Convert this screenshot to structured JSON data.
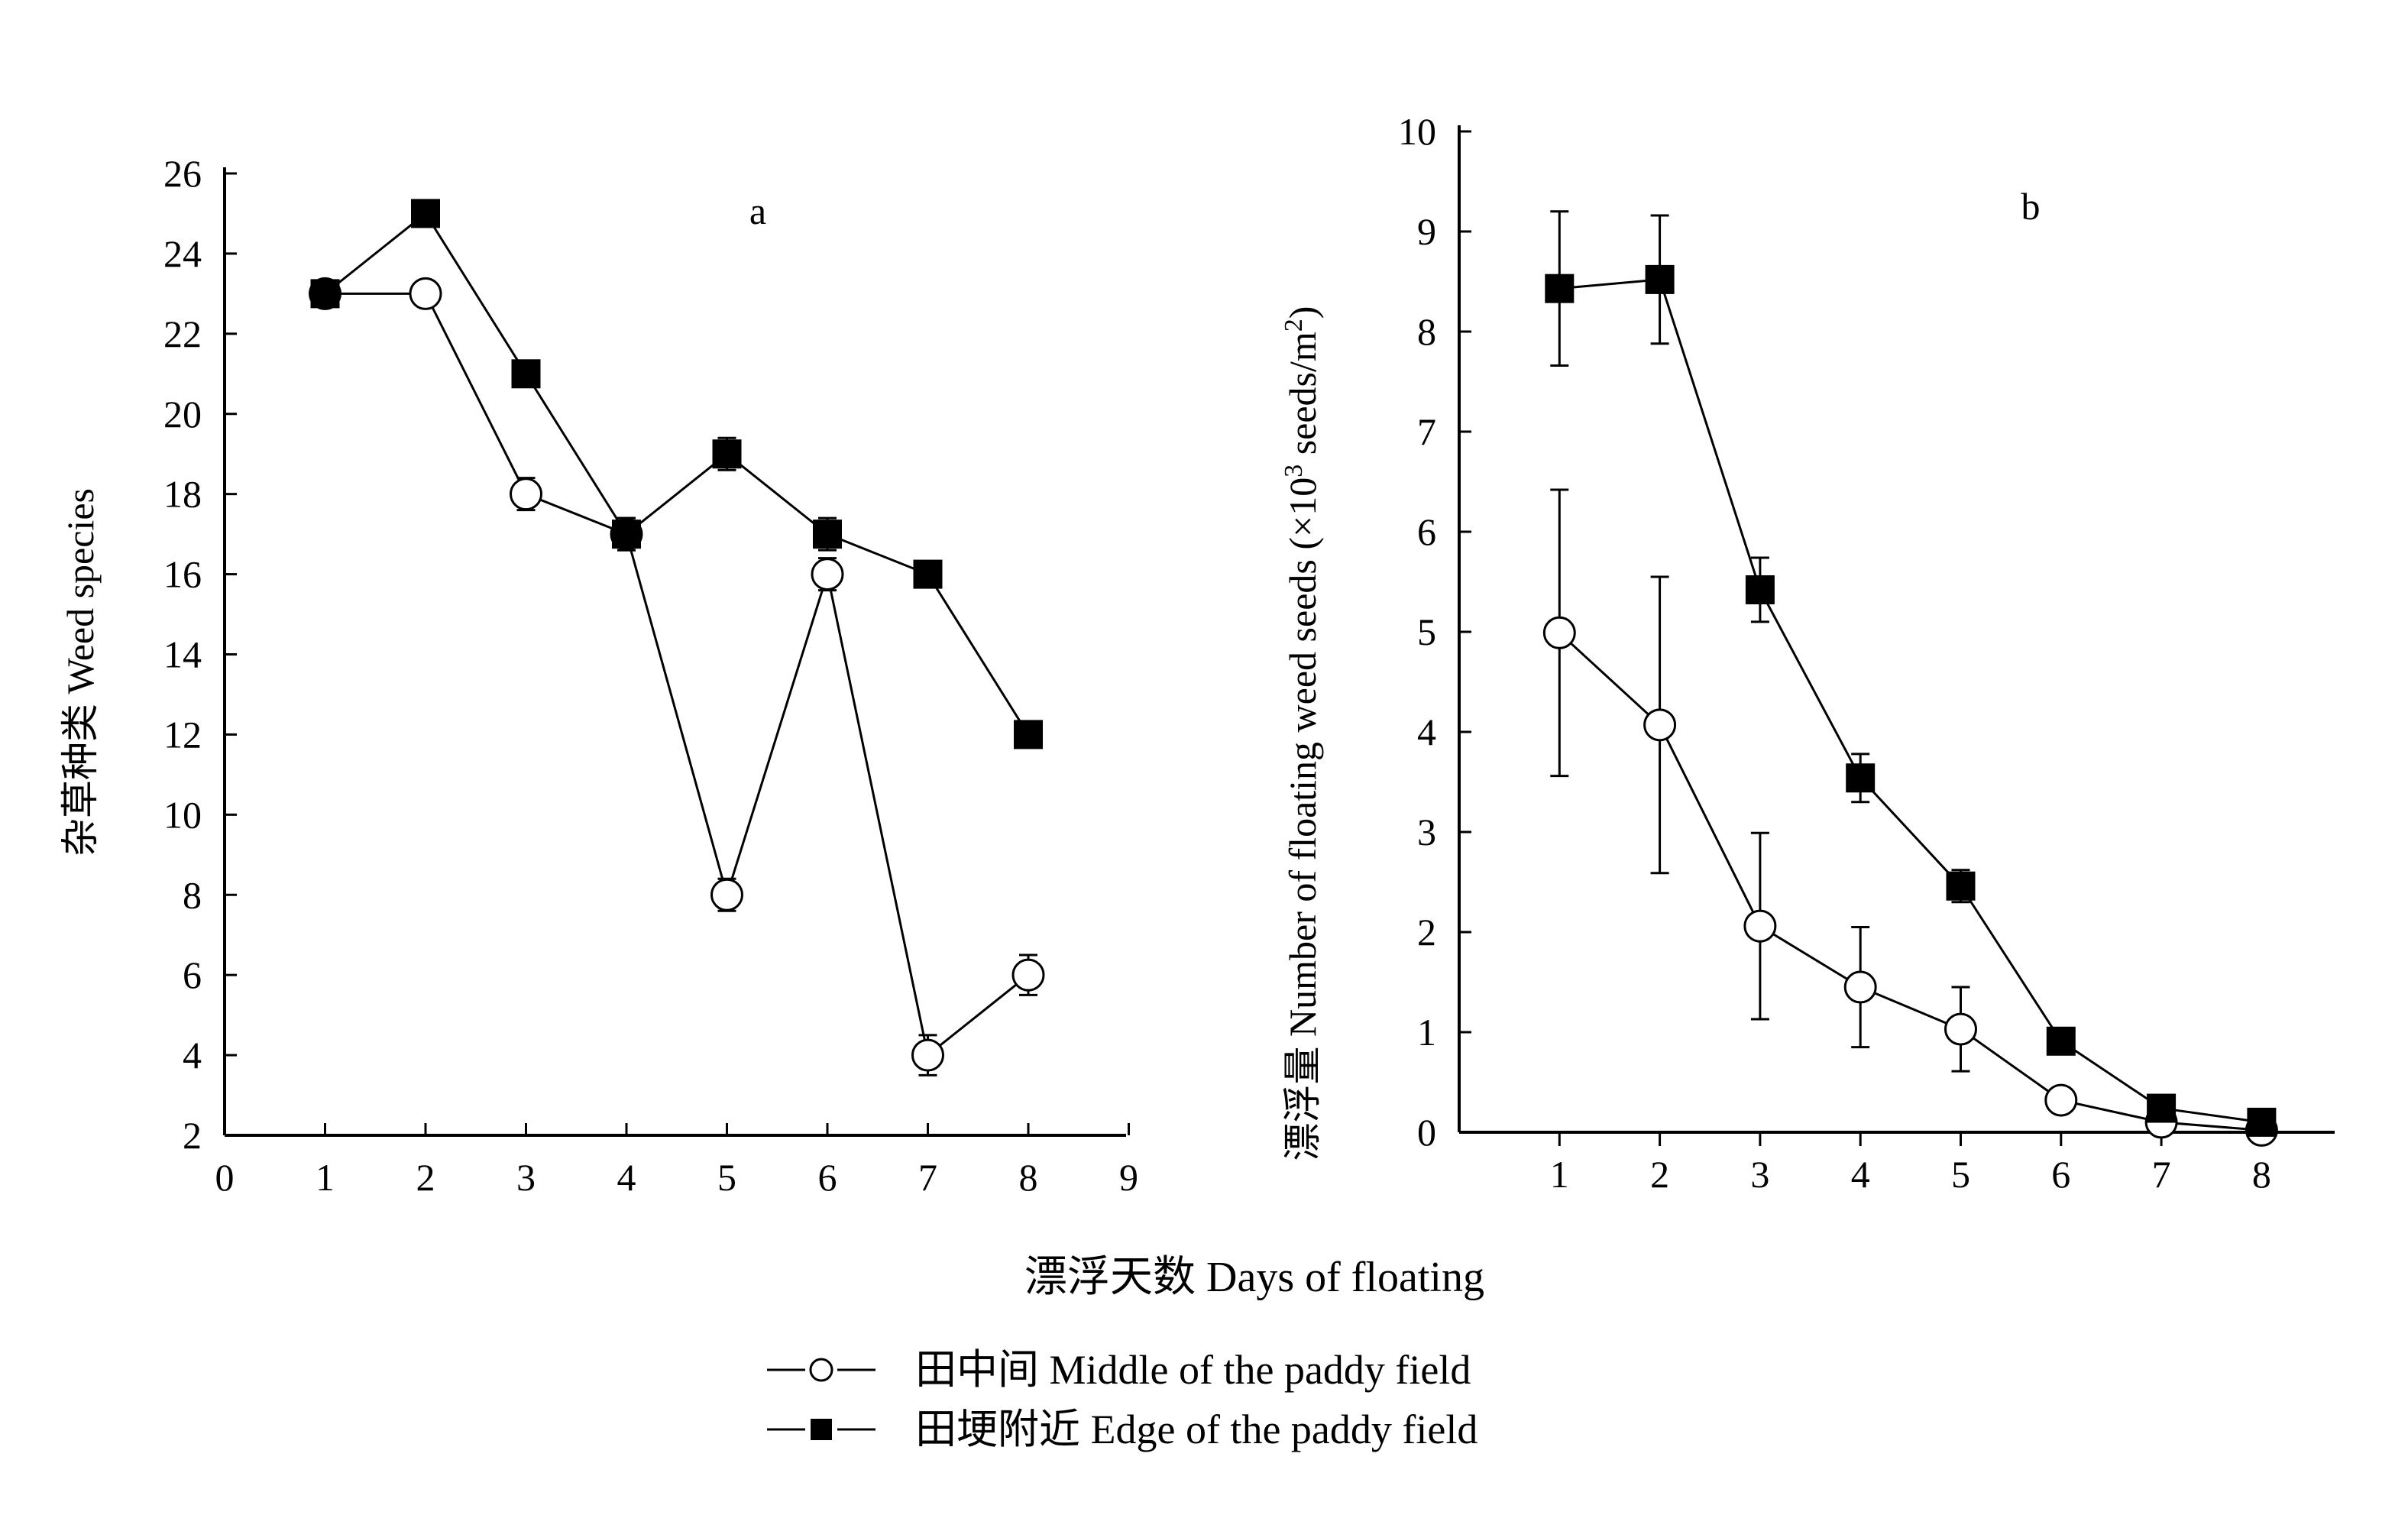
{
  "x_axis_title": "漂浮天数  Days of floating",
  "legend": [
    {
      "label": "田中间  Middle of the paddy field",
      "marker": "open-circle"
    },
    {
      "label": "田埂附近 Edge of  the paddy field",
      "marker": "filled-square"
    }
  ],
  "chart_data": [
    {
      "type": "line",
      "panel": "a",
      "ylabel": "杂草种类 Weed species",
      "xlabel": "",
      "xlim": [
        0,
        9
      ],
      "ylim": [
        2,
        26
      ],
      "x_ticks": [
        "0",
        "1",
        "2",
        "3",
        "4",
        "5",
        "6",
        "7",
        "8",
        "9"
      ],
      "y_ticks": [
        "2",
        "4",
        "6",
        "8",
        "10",
        "12",
        "14",
        "16",
        "18",
        "20",
        "22",
        "24",
        "26"
      ],
      "grid": false,
      "x": [
        1,
        2,
        3,
        4,
        5,
        6,
        7,
        8
      ],
      "series": [
        {
          "name": "田中间  Middle of the paddy field",
          "marker": "open-circle",
          "values": [
            23,
            23,
            18,
            17,
            8,
            16,
            4,
            6
          ],
          "error": [
            0.3,
            0.3,
            0.4,
            0.4,
            0.4,
            0.4,
            0.5,
            0.5
          ]
        },
        {
          "name": "田埂附近 Edge of  the paddy field",
          "marker": "filled-square",
          "values": [
            23,
            25,
            21,
            17,
            19,
            17,
            16,
            12
          ],
          "error": [
            0.3,
            0.2,
            0.3,
            0.4,
            0.4,
            0.4,
            0.3,
            0.3
          ]
        }
      ]
    },
    {
      "type": "line",
      "panel": "b",
      "ylabel": "漂浮量  Number of floating weed seeds (×10",
      "ylabel_sup1": "3",
      "ylabel_mid": " seeds/m",
      "ylabel_sup2": "2",
      "ylabel_end": ")",
      "xlabel": "",
      "xlim": [
        0,
        9
      ],
      "ylim": [
        0,
        10
      ],
      "x_ticks": [
        "1",
        "2",
        "3",
        "4",
        "5",
        "6",
        "7",
        "8"
      ],
      "y_ticks": [
        "0",
        "1",
        "2",
        "3",
        "4",
        "5",
        "6",
        "7",
        "8",
        "9",
        "10"
      ],
      "grid": false,
      "x": [
        1,
        2,
        3,
        4,
        5,
        6,
        7,
        8
      ],
      "series": [
        {
          "name": "田中间  Middle of the paddy field",
          "marker": "open-circle",
          "values": [
            4.99,
            4.07,
            2.06,
            1.45,
            1.03,
            0.32,
            0.1,
            0.02
          ],
          "error": [
            1.43,
            1.48,
            0.93,
            0.6,
            0.42,
            0.12,
            0.05,
            0.02
          ]
        },
        {
          "name": "田埂附近 Edge of  the paddy field",
          "marker": "filled-square",
          "values": [
            8.43,
            8.52,
            5.42,
            3.54,
            2.46,
            0.91,
            0.24,
            0.1
          ],
          "error": [
            0.77,
            0.64,
            0.32,
            0.24,
            0.16,
            0.07,
            0.05,
            0.03
          ]
        }
      ]
    }
  ]
}
